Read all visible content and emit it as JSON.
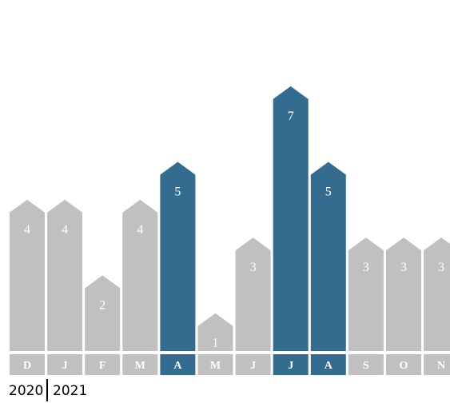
{
  "chart_data": {
    "type": "bar",
    "categories": [
      "D",
      "J",
      "F",
      "M",
      "A",
      "M",
      "J",
      "J",
      "A",
      "S",
      "O",
      "N"
    ],
    "values": [
      4,
      4,
      2,
      4,
      5,
      1,
      3,
      7,
      5,
      3,
      3,
      3
    ],
    "highlighted": [
      false,
      false,
      false,
      false,
      true,
      false,
      false,
      true,
      true,
      false,
      false,
      false
    ],
    "year_labels": [
      "2020",
      "2021"
    ],
    "ylim": [
      0,
      7
    ],
    "grid": false,
    "legend": "none"
  },
  "colors": {
    "default": "#c0c0c0",
    "highlight": "#346c90",
    "label_text": "#ffffff",
    "year_text": "#000000"
  }
}
